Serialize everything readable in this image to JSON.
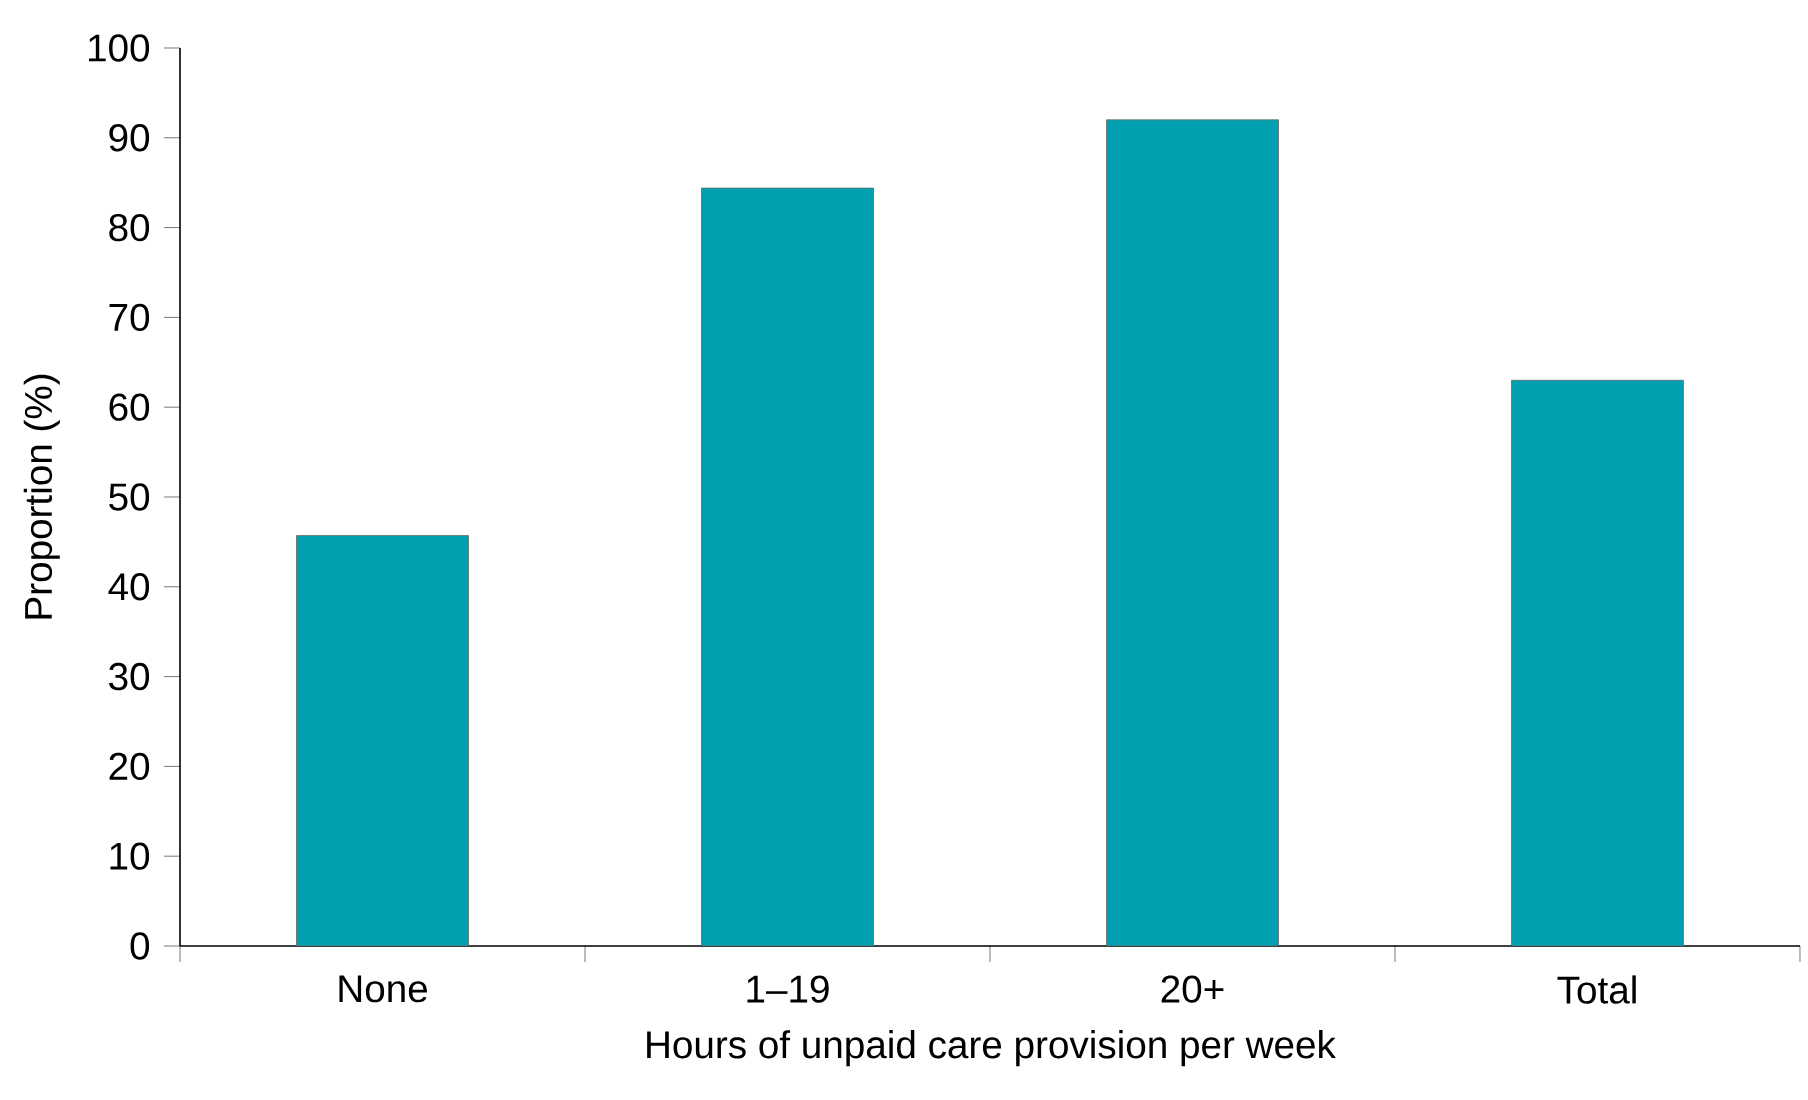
{
  "chart_data": {
    "type": "bar",
    "xlabel": "Hours of unpaid care provision per week",
    "ylabel": "Proportion (%)",
    "categories": [
      "None",
      "1–19",
      "20+",
      "Total"
    ],
    "values": [
      45.7,
      84.4,
      92.0,
      63.0
    ],
    "color": "#00a0b0",
    "ylim": [
      0,
      100
    ],
    "yticks": [
      0,
      10,
      20,
      30,
      40,
      50,
      60,
      70,
      80,
      90,
      100
    ],
    "grid": false
  }
}
